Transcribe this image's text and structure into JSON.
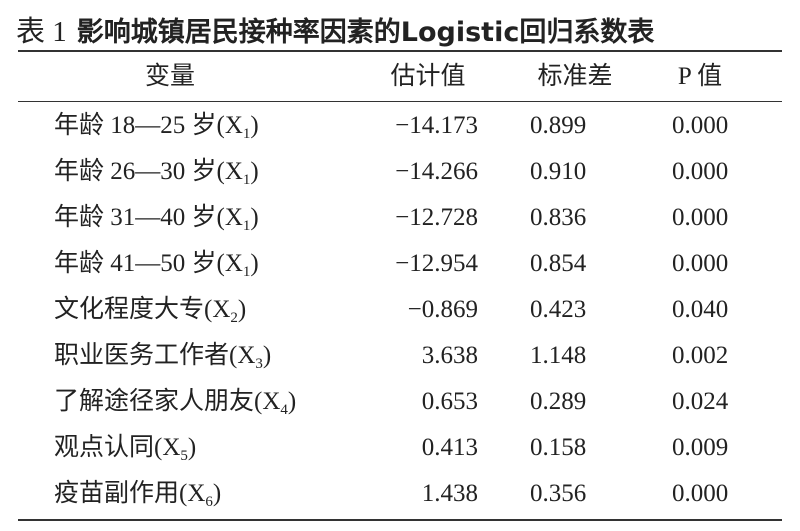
{
  "title": {
    "label": "表 1",
    "text": "影响城镇居民接种率因素的Logistic回归系数表"
  },
  "table": {
    "headers": [
      "变量",
      "估计值",
      "标准差",
      "P 值"
    ],
    "rows": [
      [
        {
          "prefix": "年龄 18—25 岁(X",
          "sub": "1",
          "suffix": ")"
        },
        "−14.173",
        "0.899",
        "0.000"
      ],
      [
        {
          "prefix": "年龄 26—30 岁(X",
          "sub": "1",
          "suffix": ")"
        },
        "−14.266",
        "0.910",
        "0.000"
      ],
      [
        {
          "prefix": "年龄 31—40 岁(X",
          "sub": "1",
          "suffix": ")"
        },
        "−12.728",
        "0.836",
        "0.000"
      ],
      [
        {
          "prefix": "年龄 41—50 岁(X",
          "sub": "1",
          "suffix": ")"
        },
        "−12.954",
        "0.854",
        "0.000"
      ],
      [
        {
          "prefix": "文化程度大专(X",
          "sub": "2",
          "suffix": ")"
        },
        "−0.869",
        "0.423",
        "0.040"
      ],
      [
        {
          "prefix": "职业医务工作者(X",
          "sub": "3",
          "suffix": ")"
        },
        "3.638",
        "1.148",
        "0.002"
      ],
      [
        {
          "prefix": "了解途径家人朋友(X",
          "sub": "4",
          "suffix": ")"
        },
        "0.653",
        "0.289",
        "0.024"
      ],
      [
        {
          "prefix": "观点认同(X",
          "sub": "5",
          "suffix": ")"
        },
        "0.413",
        "0.158",
        "0.009"
      ],
      [
        {
          "prefix": "疫苗副作用(X",
          "sub": "6",
          "suffix": ")"
        },
        "1.438",
        "0.356",
        "0.000"
      ]
    ]
  }
}
